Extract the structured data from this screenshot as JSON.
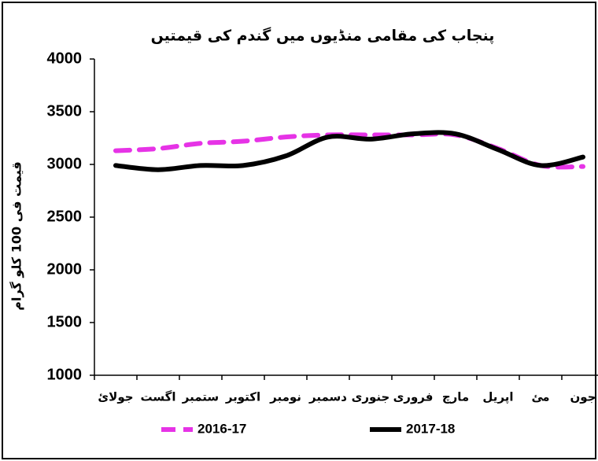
{
  "chart_data": {
    "type": "line",
    "title": "پنجاب کی مقامی منڈیوں میں گندم کی قیمتیں",
    "y_label": "قیمت فی 100 کلو گرام",
    "categories": [
      "جولائ",
      "اگست",
      "ستمبر",
      "اکتوبر",
      "نومبر",
      "دسمبر",
      "جنوری",
      "فروری",
      "مارچ",
      "اپریل",
      "مئ",
      "جون"
    ],
    "series": [
      {
        "name": "2016-17",
        "color": "#e633e6",
        "dashed": true,
        "values": [
          3130,
          3150,
          3200,
          3220,
          3260,
          3280,
          3280,
          3280,
          3280,
          3150,
          2990,
          2980
        ]
      },
      {
        "name": "2017-18",
        "color": "#000000",
        "dashed": false,
        "values": [
          2990,
          2950,
          2990,
          2990,
          3080,
          3260,
          3240,
          3290,
          3290,
          3140,
          2990,
          3070
        ]
      }
    ],
    "ylim": [
      1000,
      4000
    ],
    "yticks": [
      1000,
      1500,
      2000,
      2500,
      3000,
      3500,
      4000
    ],
    "grid": false
  }
}
